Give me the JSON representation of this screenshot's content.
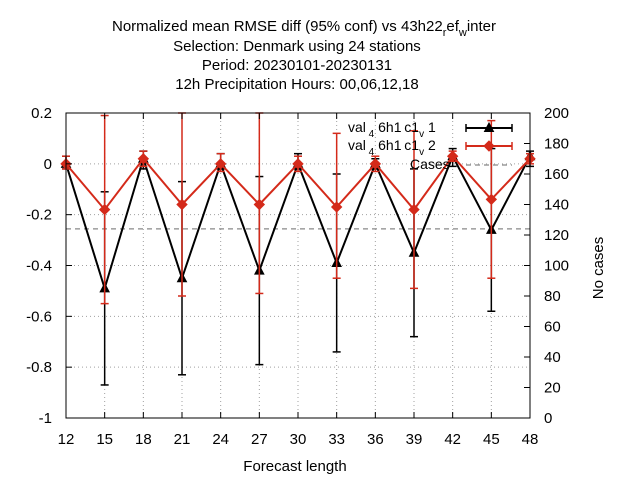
{
  "chart_data": {
    "type": "line",
    "title_lines": [
      "Normalized mean RMSE diff (95% conf) vs 43h22_ref_winter",
      "Selection: Denmark using   24 stations",
      "Period: 20230101-20230131",
      "12h Precipitation   Hours: 00,06,12,18"
    ],
    "xlabel": "Forecast length",
    "ylabel": "",
    "y2label": "No cases",
    "x": [
      12,
      15,
      18,
      21,
      24,
      27,
      30,
      33,
      36,
      39,
      42,
      45,
      48
    ],
    "xticks": [
      "12",
      "15",
      "18",
      "21",
      "24",
      "27",
      "30",
      "33",
      "36",
      "39",
      "42",
      "45",
      "48"
    ],
    "yticks": [
      "0.2",
      "0",
      "-0.2",
      "-0.4",
      "-0.6",
      "-0.8",
      "-1"
    ],
    "y2ticks": [
      "200",
      "180",
      "160",
      "140",
      "120",
      "100",
      "80",
      "60",
      "40",
      "20",
      "0"
    ],
    "xlim": [
      12,
      48
    ],
    "ylim": [
      -1,
      0.2
    ],
    "y2lim": [
      0,
      200
    ],
    "grid": true,
    "legend_position": "top-right",
    "series": [
      {
        "name": "val_4 6h1_c1_v 1",
        "color": "#000000",
        "marker": "triangle",
        "values": [
          0.0,
          -0.49,
          0.02,
          -0.45,
          0.0,
          -0.42,
          0.0,
          -0.39,
          0.0,
          -0.35,
          0.03,
          -0.26,
          0.03
        ],
        "lower": [
          -0.02,
          -0.87,
          -0.02,
          -0.83,
          -0.02,
          -0.79,
          -0.02,
          -0.74,
          -0.02,
          -0.68,
          -0.01,
          -0.58,
          -0.01
        ],
        "upper": [
          0.03,
          -0.11,
          0.05,
          -0.07,
          0.04,
          -0.05,
          0.04,
          -0.04,
          0.02,
          -0.02,
          0.06,
          0.06,
          0.05
        ]
      },
      {
        "name": "val_4 6h1_c1_v 2",
        "color": "#d42a1a",
        "marker": "diamond",
        "values": [
          0.0,
          -0.18,
          0.02,
          -0.16,
          0.0,
          -0.16,
          0.0,
          -0.17,
          0.0,
          -0.18,
          0.03,
          -0.14,
          0.02
        ],
        "lower": [
          -0.02,
          -0.55,
          -0.01,
          -0.52,
          -0.03,
          -0.51,
          -0.03,
          -0.45,
          -0.03,
          -0.49,
          0.01,
          -0.45,
          0.0
        ],
        "upper": [
          0.03,
          0.19,
          0.05,
          0.2,
          0.04,
          0.2,
          0.03,
          0.12,
          0.03,
          0.13,
          0.05,
          0.17,
          0.04
        ]
      }
    ],
    "cases": {
      "name": "Cases",
      "color": "#888888",
      "values": [
        124,
        124,
        124,
        124,
        124,
        124,
        124,
        124,
        124,
        124,
        124,
        124,
        124
      ]
    }
  }
}
